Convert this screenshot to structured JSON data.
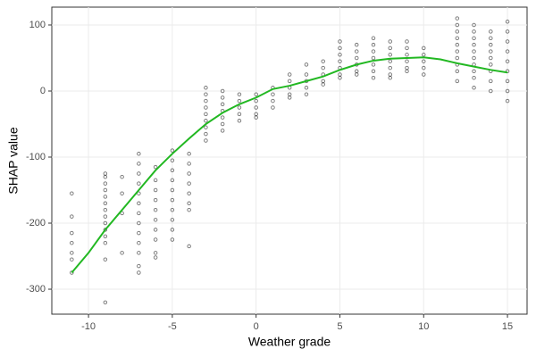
{
  "chart_data": {
    "type": "scatter",
    "x_label": "Weather grade",
    "y_label": "SHAP value",
    "xlim": [
      -12.19,
      16.17
    ],
    "ylim": [
      -337.8,
      127
    ],
    "xticks": [
      -10,
      -5,
      0,
      5,
      10,
      15
    ],
    "yticks": [
      -300,
      -200,
      -100,
      0,
      100
    ],
    "grid": true,
    "point_color": "#000000",
    "points": [
      {
        "x": -11,
        "y": [
          -155,
          -190,
          -215,
          -230,
          -245,
          -255,
          -275
        ]
      },
      {
        "x": -9,
        "y": [
          -125,
          -130,
          -140,
          -150,
          -160,
          -170,
          -180,
          -190,
          -200,
          -210,
          -220,
          -230,
          -255,
          -320
        ]
      },
      {
        "x": -8,
        "y": [
          -130,
          -155,
          -185,
          -245
        ]
      },
      {
        "x": -7,
        "y": [
          -95,
          -110,
          -125,
          -140,
          -155,
          -170,
          -185,
          -200,
          -215,
          -230,
          -245,
          -265,
          -275
        ]
      },
      {
        "x": -6,
        "y": [
          -115,
          -135,
          -150,
          -165,
          -180,
          -195,
          -210,
          -225,
          -245,
          -252
        ]
      },
      {
        "x": -5,
        "y": [
          -90,
          -105,
          -120,
          -135,
          -150,
          -165,
          -180,
          -195,
          -210,
          -225
        ]
      },
      {
        "x": -4,
        "y": [
          -95,
          -110,
          -125,
          -140,
          -155,
          -170,
          -180,
          -235
        ]
      },
      {
        "x": -3,
        "y": [
          5,
          -5,
          -15,
          -25,
          -35,
          -45,
          -55,
          -65,
          -75
        ]
      },
      {
        "x": -2,
        "y": [
          0,
          -10,
          -20,
          -30,
          -40,
          -50,
          -60
        ]
      },
      {
        "x": -1,
        "y": [
          -5,
          -15,
          -25,
          -35,
          -45
        ]
      },
      {
        "x": 0,
        "y": [
          -5,
          -15,
          -25,
          -35,
          -40
        ]
      },
      {
        "x": 1,
        "y": [
          5,
          -5,
          -15,
          -25
        ]
      },
      {
        "x": 2,
        "y": [
          25,
          15,
          5,
          -5,
          -10
        ]
      },
      {
        "x": 3,
        "y": [
          40,
          25,
          15,
          5,
          -5
        ]
      },
      {
        "x": 4,
        "y": [
          45,
          35,
          25,
          15,
          10
        ]
      },
      {
        "x": 5,
        "y": [
          75,
          65,
          55,
          45,
          35,
          25,
          20
        ]
      },
      {
        "x": 6,
        "y": [
          70,
          60,
          50,
          40,
          30,
          25
        ]
      },
      {
        "x": 7,
        "y": [
          80,
          70,
          60,
          50,
          40,
          30,
          20
        ]
      },
      {
        "x": 8,
        "y": [
          75,
          65,
          55,
          45,
          35,
          25,
          20
        ]
      },
      {
        "x": 9,
        "y": [
          75,
          65,
          55,
          45,
          35,
          30
        ]
      },
      {
        "x": 10,
        "y": [
          65,
          55,
          45,
          35,
          25
        ]
      },
      {
        "x": 12,
        "y": [
          110,
          100,
          90,
          80,
          70,
          60,
          50,
          40,
          30,
          15
        ]
      },
      {
        "x": 13,
        "y": [
          100,
          90,
          80,
          70,
          60,
          50,
          40,
          30,
          20,
          5
        ]
      },
      {
        "x": 14,
        "y": [
          90,
          80,
          70,
          60,
          50,
          40,
          30,
          15,
          0
        ]
      },
      {
        "x": 15,
        "y": [
          105,
          90,
          75,
          60,
          45,
          30,
          15,
          0,
          -15
        ]
      }
    ],
    "smooth": {
      "color": "#22b822",
      "x": [
        -11,
        -10,
        -9,
        -8,
        -7,
        -6,
        -5,
        -4,
        -3,
        -2,
        -1,
        0,
        1,
        2,
        3,
        4,
        5,
        6,
        7,
        8,
        9,
        10,
        11,
        12,
        13,
        14,
        15
      ],
      "y": [
        -275,
        -245,
        -210,
        -180,
        -150,
        -120,
        -95,
        -72,
        -50,
        -33,
        -20,
        -10,
        3,
        8,
        15,
        22,
        32,
        40,
        46,
        49,
        50,
        51,
        48,
        42,
        37,
        32,
        28
      ]
    }
  }
}
